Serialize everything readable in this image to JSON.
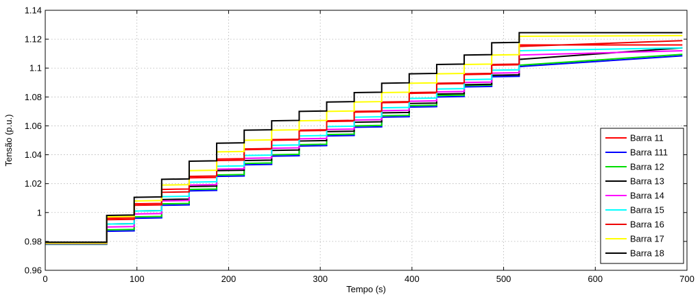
{
  "chart_data": {
    "type": "line",
    "title": "",
    "xlabel": "Tempo (s)",
    "ylabel": "Tensão (p.u.)",
    "xlim": [
      0,
      700
    ],
    "ylim": [
      0.96,
      1.14
    ],
    "xticks": [
      0,
      100,
      200,
      300,
      400,
      500,
      600,
      700
    ],
    "yticks": [
      0.96,
      0.98,
      1,
      1.02,
      1.04,
      1.06,
      1.08,
      1.1,
      1.12,
      1.14
    ],
    "xtick_labels": [
      "0",
      "100",
      "200",
      "300",
      "400",
      "500",
      "600",
      "700"
    ],
    "ytick_labels": [
      "0.96",
      "0.98",
      "1",
      "1.02",
      "1.04",
      "1.06",
      "1.08",
      "1.1",
      "1.12",
      "1.14"
    ],
    "grid": true,
    "legend_position": "bottom-right",
    "x": [
      0,
      12,
      67,
      97,
      127,
      157,
      187,
      217,
      247,
      277,
      307,
      337,
      367,
      397,
      427,
      457,
      487,
      517,
      695
    ],
    "series": [
      {
        "name": "Barra 11",
        "color": "#ff0000",
        "values": [
          0.9785,
          0.9785,
          0.996,
          1.006,
          1.016,
          1.024,
          1.037,
          1.0435,
          1.05,
          1.0565,
          1.063,
          1.0695,
          1.076,
          1.0825,
          1.089,
          1.0955,
          1.102,
          1.116,
          1.116
        ]
      },
      {
        "name": "Barra 111",
        "color": "#0000ff",
        "values": [
          0.978,
          0.978,
          0.987,
          0.996,
          1.005,
          1.015,
          1.025,
          1.033,
          1.039,
          1.046,
          1.053,
          1.059,
          1.066,
          1.073,
          1.08,
          1.087,
          1.094,
          1.101,
          1.1085
        ]
      },
      {
        "name": "Barra 12",
        "color": "#00dd00",
        "values": [
          0.978,
          0.978,
          0.988,
          0.997,
          1.006,
          1.016,
          1.026,
          1.034,
          1.04,
          1.047,
          1.054,
          1.06,
          1.067,
          1.074,
          1.081,
          1.088,
          1.095,
          1.102,
          1.1095
        ]
      },
      {
        "name": "Barra 13",
        "color": "#000000",
        "values": [
          0.979,
          0.979,
          0.992,
          1.001,
          1.009,
          1.018,
          1.029,
          1.036,
          1.043,
          1.0495,
          1.056,
          1.0625,
          1.069,
          1.0755,
          1.082,
          1.0885,
          1.095,
          1.106,
          1.114
        ]
      },
      {
        "name": "Barra 14",
        "color": "#ff00ff",
        "values": [
          0.9782,
          0.9782,
          0.99,
          0.999,
          1.008,
          1.019,
          1.03,
          1.0375,
          1.0445,
          1.051,
          1.0575,
          1.064,
          1.0705,
          1.077,
          1.0835,
          1.09,
          1.0965,
          1.109,
          1.112
        ]
      },
      {
        "name": "Barra 15",
        "color": "#00ffff",
        "values": [
          0.9784,
          0.9784,
          0.992,
          1.001,
          1.011,
          1.021,
          1.032,
          1.0395,
          1.0465,
          1.053,
          1.0595,
          1.066,
          1.0725,
          1.079,
          1.0855,
          1.092,
          1.0985,
          1.112,
          1.114
        ]
      },
      {
        "name": "Barra 16",
        "color": "#ee0000",
        "values": [
          0.9787,
          0.9787,
          0.995,
          1.005,
          1.014,
          1.025,
          1.036,
          1.044,
          1.0505,
          1.057,
          1.0635,
          1.07,
          1.0765,
          1.083,
          1.0895,
          1.096,
          1.1025,
          1.115,
          1.119
        ]
      },
      {
        "name": "Barra 17",
        "color": "#ffff00",
        "values": [
          0.979,
          0.979,
          0.997,
          1.008,
          1.019,
          1.029,
          1.042,
          1.05,
          1.057,
          1.0635,
          1.07,
          1.0765,
          1.083,
          1.0895,
          1.096,
          1.1025,
          1.109,
          1.122,
          1.1225
        ]
      },
      {
        "name": "Barra 18",
        "color": "#000000",
        "values": [
          0.9795,
          0.9795,
          0.998,
          1.0105,
          1.023,
          1.0355,
          1.048,
          1.057,
          1.0635,
          1.07,
          1.0765,
          1.083,
          1.0895,
          1.096,
          1.1025,
          1.109,
          1.1175,
          1.1245,
          1.1245
        ]
      }
    ]
  }
}
